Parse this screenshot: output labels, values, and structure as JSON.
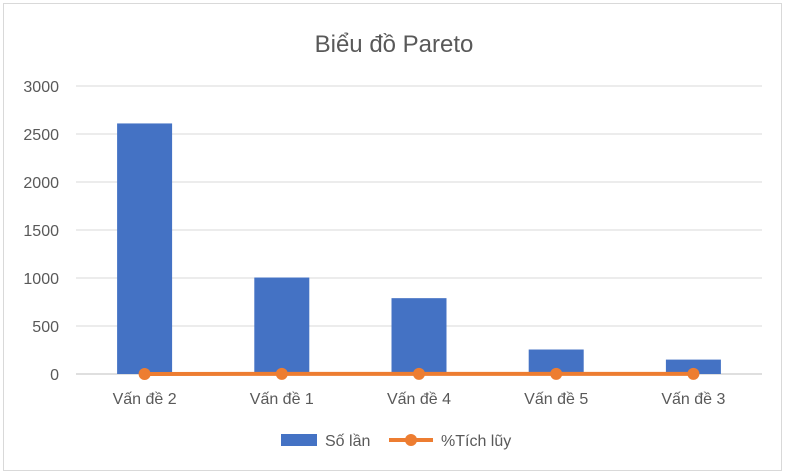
{
  "chart_data": {
    "type": "bar",
    "title": "Biểu đồ Pareto",
    "categories": [
      "Vấn đề 2",
      "Vấn đề 1",
      "Vấn đề 4",
      "Vấn đề 5",
      "Vấn đề 3"
    ],
    "series": [
      {
        "name": "Số lần",
        "type": "bar",
        "color": "#4472C4",
        "values": [
          2610,
          1005,
          790,
          255,
          150
        ]
      },
      {
        "name": "%Tích lũy",
        "type": "line",
        "color": "#ED7D31",
        "values": [
          0.54,
          0.76,
          0.92,
          0.97,
          1.0
        ]
      }
    ],
    "yticks": [
      "0",
      "500",
      "1000",
      "1500",
      "2000",
      "2500",
      "3000"
    ],
    "ylim": [
      0,
      3000
    ],
    "grid": true,
    "legend": "bottom"
  }
}
